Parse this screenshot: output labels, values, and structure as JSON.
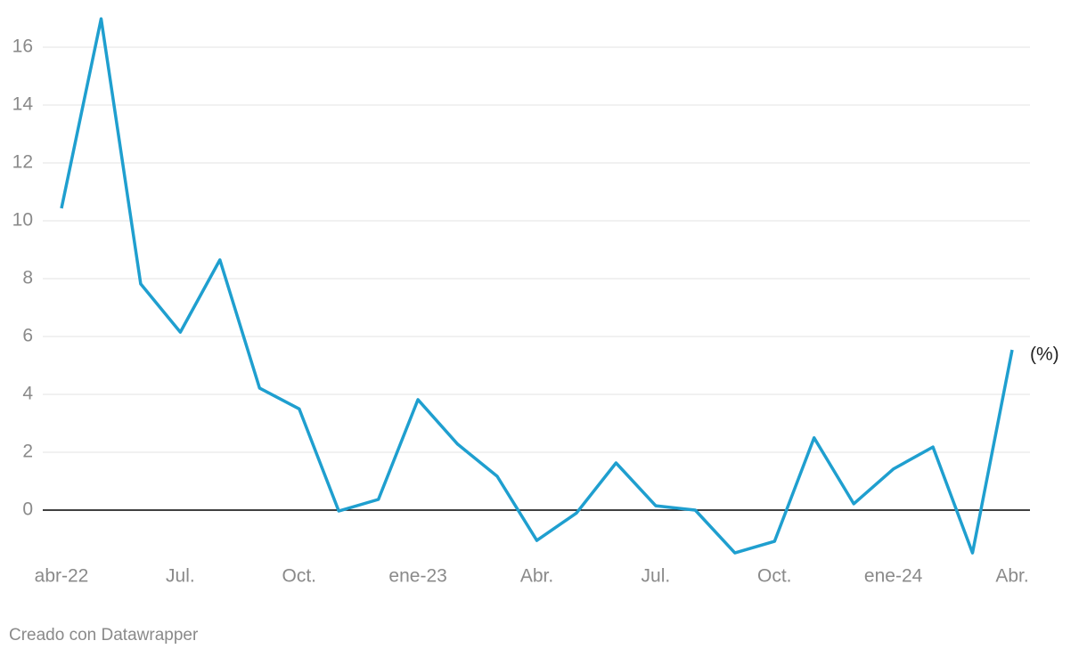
{
  "chart_data": {
    "type": "line",
    "categories": [
      "abr-22",
      null,
      null,
      "Jul.",
      null,
      null,
      "Oct.",
      null,
      null,
      "ene-23",
      null,
      null,
      "Abr.",
      null,
      null,
      "Jul.",
      null,
      null,
      "Oct.",
      null,
      null,
      "ene-24",
      null,
      null,
      "Abr."
    ],
    "values": [
      10.43,
      16.98,
      7.82,
      6.15,
      8.65,
      4.22,
      3.5,
      -0.03,
      0.37,
      3.82,
      2.28,
      1.17,
      -1.05,
      -0.1,
      1.63,
      0.15,
      0,
      -1.48,
      -1.08,
      2.5,
      0.22,
      1.42,
      2.18,
      -1.48,
      5.54
    ],
    "color": "#1f9fcf",
    "ylim": [
      -1.6,
      17
    ],
    "yticks": [
      0,
      2,
      4,
      6,
      8,
      10,
      12,
      14,
      16
    ],
    "grid": true,
    "annotation": "(%)",
    "source": "Creado con Datawrapper"
  }
}
